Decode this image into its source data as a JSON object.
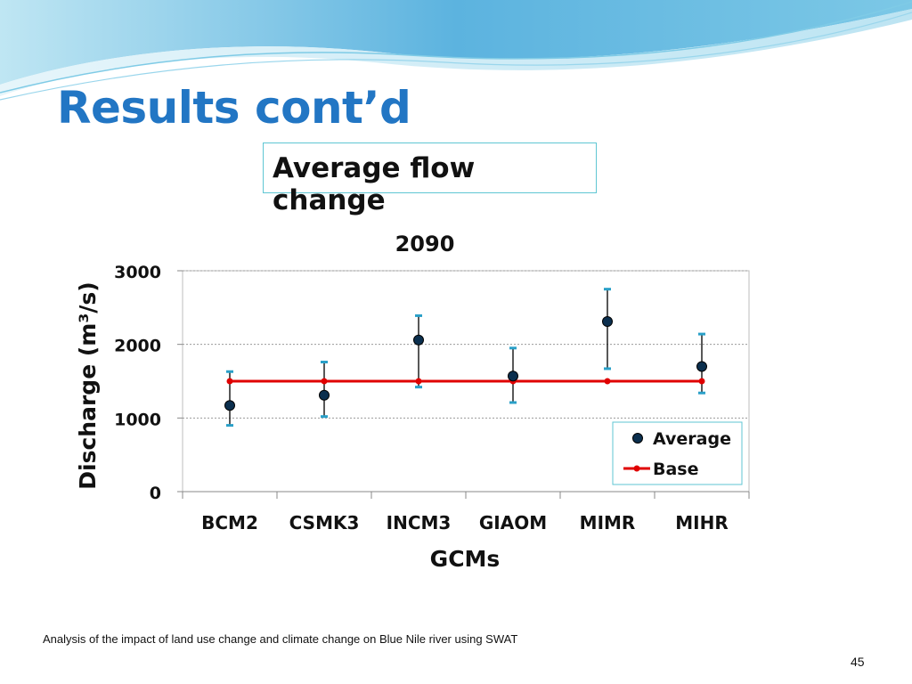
{
  "slide": {
    "title": "Results cont’d",
    "subtitle": "Average flow change",
    "footer": "Analysis of the impact of land use change and climate change on Blue Nile river using SWAT",
    "page_number": "45"
  },
  "colors": {
    "title": "#2276c4",
    "box_border": "#5fc6d3",
    "base_line": "#e00000",
    "error_cap": "#2aa0c8",
    "marker_fill": "#0b2f4e",
    "wave_light": "#a6dcef",
    "wave_mid": "#54a9d8"
  },
  "chart_data": {
    "type": "scatter",
    "title": "2090",
    "xlabel": "GCMs",
    "ylabel": "Discharge (m³/s)",
    "categories": [
      "BCM2",
      "CSMK3",
      "INCM3",
      "GIAOM",
      "MIMR",
      "MIHR"
    ],
    "ylim": [
      0,
      3000
    ],
    "yticks": [
      "0",
      "1000",
      "2000",
      "3000"
    ],
    "grid": true,
    "legend_position": "bottom-right",
    "series": [
      {
        "name": "Average",
        "marker": "circle",
        "values": [
          1170,
          1310,
          2060,
          1570,
          2310,
          1700
        ],
        "error_low": [
          900,
          1020,
          1420,
          1210,
          1670,
          1340
        ],
        "error_high": [
          1630,
          1760,
          2390,
          1950,
          2750,
          2140
        ]
      },
      {
        "name": "Base",
        "marker": "line",
        "values": [
          1500,
          1500,
          1500,
          1500,
          1500,
          1500
        ]
      }
    ]
  }
}
